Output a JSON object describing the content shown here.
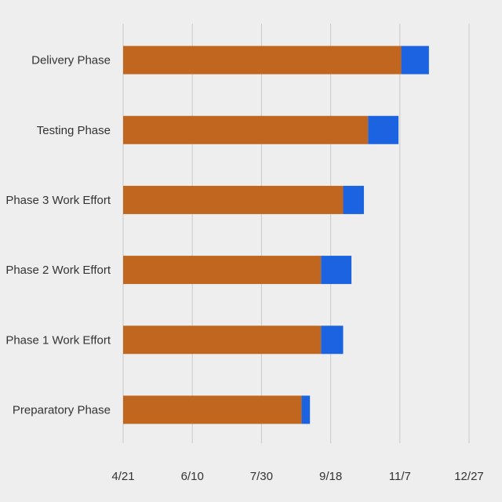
{
  "chart_data": {
    "type": "bar",
    "orientation": "horizontal",
    "stacked": true,
    "categories": [
      "Delivery Phase",
      "Testing Phase",
      "Phase 3 Work Effort",
      "Phase 2 Work Effort",
      "Phase 1 Work Effort",
      "Preparatory Phase"
    ],
    "series": [
      {
        "values": [
          "2022-11-08",
          "2022-10-15",
          "2022-09-27",
          "2022-09-11",
          "2022-09-11",
          "2022-08-28"
        ],
        "color": "#c0661e"
      },
      {
        "values": [
          20,
          22,
          15,
          22,
          16,
          6
        ],
        "color": "#1b63e0"
      }
    ],
    "base": "2022-04-21",
    "xticks": [
      "4/21",
      "6/10",
      "7/30",
      "9/18",
      "11/7",
      "12/27"
    ],
    "xlim": [
      "2022-04-21",
      "2022-12-27"
    ],
    "grid": "vertical",
    "title": "",
    "xlabel": "",
    "ylabel": ""
  }
}
